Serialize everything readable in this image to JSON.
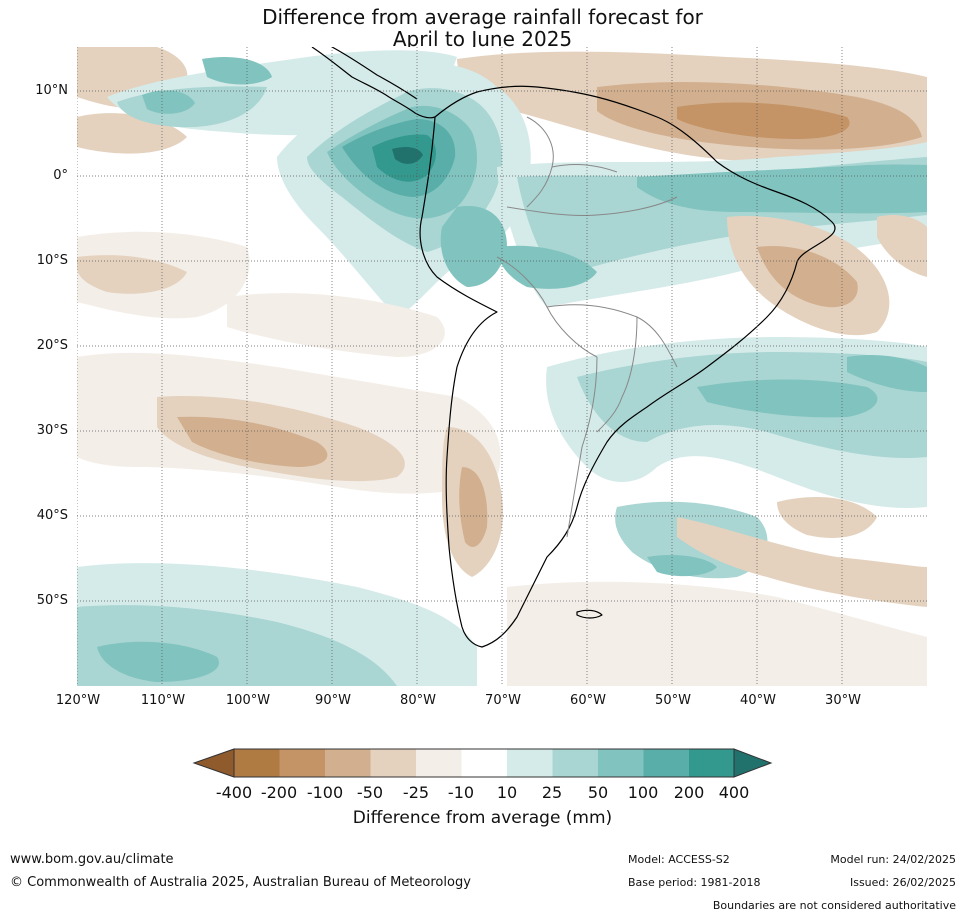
{
  "title": {
    "line1": "Difference from average rainfall forecast for",
    "line2": "April to June 2025"
  },
  "map": {
    "lat_labels": [
      "10°N",
      "0°",
      "10°S",
      "20°S",
      "30°S",
      "40°S",
      "50°S"
    ],
    "lon_labels": [
      "120°W",
      "110°W",
      "100°W",
      "90°W",
      "80°W",
      "70°W",
      "60°W",
      "50°W",
      "40°W",
      "30°W"
    ],
    "lat_range": [
      -60,
      15
    ],
    "lon_range": [
      -120,
      -20
    ],
    "gridlines": true,
    "region": "South America"
  },
  "colorbar": {
    "ticks": [
      "-400",
      "-200",
      "-100",
      "-50",
      "-25",
      "-10",
      "10",
      "25",
      "50",
      "100",
      "200",
      "400"
    ],
    "colors": [
      "#8f5a2c",
      "#b07a43",
      "#c49466",
      "#d2b08f",
      "#e4d2bf",
      "#f3eee8",
      "#ffffff",
      "#d5ebe9",
      "#a9d5d3",
      "#80c3bf",
      "#5aaea9",
      "#33998f",
      "#21726d"
    ],
    "label": "Difference from average (mm)",
    "extend": "both"
  },
  "footer": {
    "url": "www.bom.gov.au/climate",
    "copyright": "© Commonwealth of Australia 2025, Australian Bureau of Meteorology",
    "model": "Model: ACCESS-S2",
    "base_period": "Base period: 1981-2018",
    "model_run": "Model run: 24/02/2025",
    "issued": "Issued: 26/02/2025",
    "disclaimer": "Boundaries are not considered authoritative"
  }
}
